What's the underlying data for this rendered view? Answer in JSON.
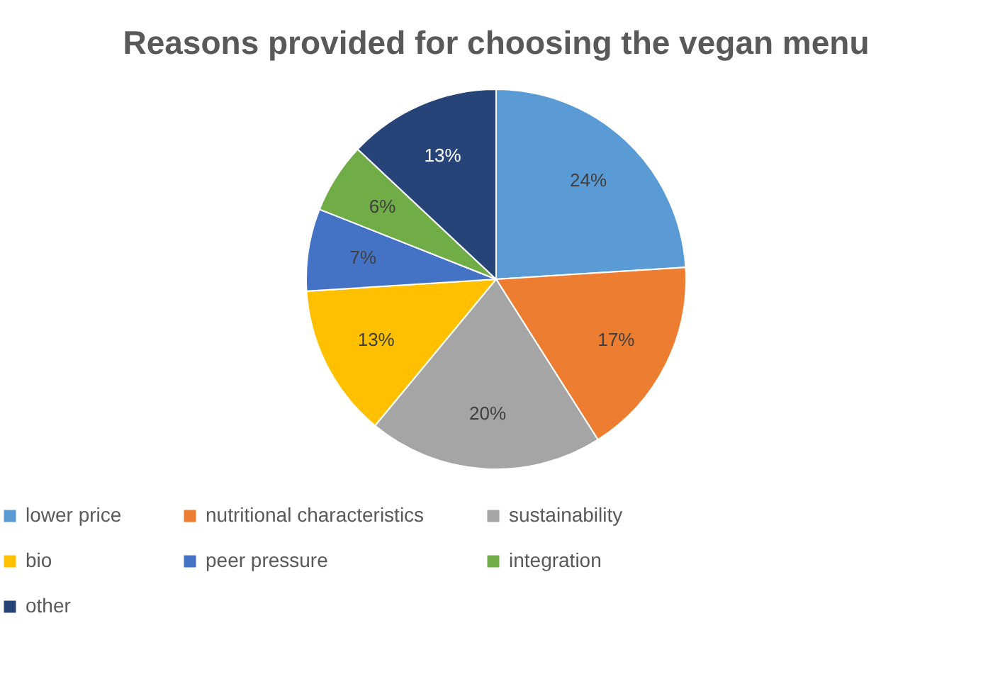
{
  "chart_data": {
    "type": "pie",
    "title": "Reasons provided for choosing the vegan menu",
    "categories": [
      "lower price",
      "nutritional characteristics",
      "sustainability",
      "bio",
      "peer pressure",
      "integration",
      "other"
    ],
    "values": [
      24,
      17,
      20,
      13,
      7,
      6,
      13
    ],
    "colors": [
      "#5b9bd5",
      "#ed7d31",
      "#a5a5a5",
      "#ffc000",
      "#4472c4",
      "#70ad47",
      "#264478"
    ],
    "value_labels": [
      "24%",
      "17%",
      "20%",
      "13%",
      "7%",
      "6%",
      "13%"
    ],
    "legend": "bottom"
  }
}
